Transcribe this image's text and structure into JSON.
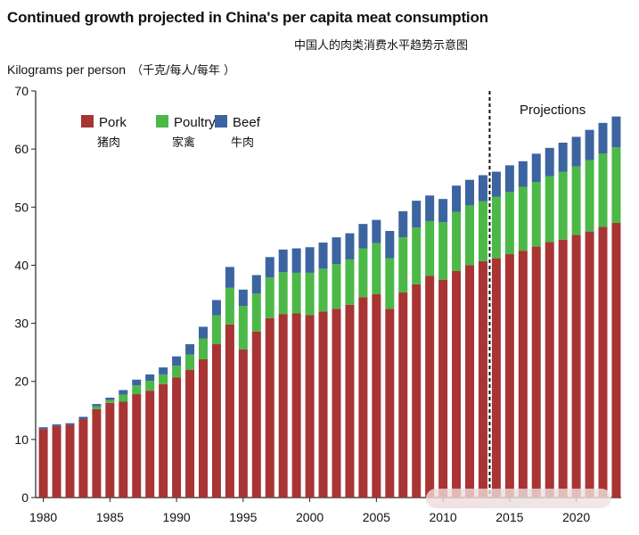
{
  "chart_data": {
    "type": "bar",
    "stacked": true,
    "title": "Continued growth projected in China's per capita meat consumption",
    "subtitle": "中国人的肉类消费水平趋势示意图",
    "ylabel": "Kilograms per person",
    "ylabel_cn": "（千克/每人/每年 ）",
    "ylim": [
      0,
      70
    ],
    "yticks": [
      0,
      10,
      20,
      30,
      40,
      50,
      60,
      70
    ],
    "xticks": [
      1980,
      1985,
      1990,
      1995,
      2000,
      2005,
      2010,
      2015,
      2020
    ],
    "projection_label": "Projections",
    "projection_start": 2013.5,
    "legend_position": "top-left",
    "grid": false,
    "categories": [
      1980,
      1981,
      1982,
      1983,
      1984,
      1985,
      1986,
      1987,
      1988,
      1989,
      1990,
      1991,
      1992,
      1993,
      1994,
      1995,
      1996,
      1997,
      1998,
      1999,
      2000,
      2001,
      2002,
      2003,
      2004,
      2005,
      2006,
      2007,
      2008,
      2009,
      2010,
      2011,
      2012,
      2013,
      2014,
      2015,
      2016,
      2017,
      2018,
      2019,
      2020,
      2021,
      2022,
      2023
    ],
    "series": [
      {
        "name": "Pork",
        "name_cn": "猪肉",
        "color": "#a83434",
        "values": [
          11.8,
          12.3,
          12.5,
          13.5,
          15.2,
          16.3,
          16.5,
          17.8,
          18.4,
          19.5,
          20.7,
          22.0,
          23.8,
          26.4,
          29.8,
          25.5,
          28.6,
          30.9,
          31.6,
          31.7,
          31.4,
          32.0,
          32.5,
          33.2,
          34.5,
          35.0,
          32.5,
          35.3,
          36.7,
          38.2,
          37.5,
          39.0,
          40.0,
          40.7,
          41.2,
          41.9,
          42.5,
          43.2,
          44.0,
          44.4,
          45.2,
          45.8,
          46.6,
          47.3
        ]
      },
      {
        "name": "Poultry",
        "name_cn": "家禽",
        "color": "#4cb848",
        "values": [
          0,
          0,
          0,
          0,
          0.5,
          0.5,
          1.2,
          1.5,
          1.7,
          1.7,
          2.0,
          2.6,
          3.6,
          5.0,
          6.3,
          7.5,
          6.5,
          7.0,
          7.2,
          7.0,
          7.3,
          7.4,
          7.7,
          7.8,
          8.4,
          8.8,
          8.7,
          9.5,
          9.8,
          9.4,
          9.9,
          10.2,
          10.3,
          10.3,
          10.6,
          10.7,
          11.0,
          11.1,
          11.3,
          11.7,
          11.8,
          12.3,
          12.6,
          13.0
        ]
      },
      {
        "name": "Beef",
        "name_cn": "牛肉",
        "color": "#3c64a0",
        "values": [
          0.3,
          0.3,
          0.3,
          0.4,
          0.4,
          0.4,
          0.8,
          1.0,
          1.1,
          1.2,
          1.6,
          1.8,
          2.0,
          2.6,
          3.6,
          2.8,
          3.2,
          3.5,
          3.9,
          4.2,
          4.4,
          4.5,
          4.6,
          4.5,
          4.2,
          4.0,
          4.7,
          4.5,
          4.6,
          4.4,
          4.0,
          4.5,
          4.4,
          4.5,
          4.3,
          4.6,
          4.4,
          4.9,
          4.9,
          5.0,
          5.1,
          5.2,
          5.3,
          5.3
        ]
      }
    ]
  }
}
